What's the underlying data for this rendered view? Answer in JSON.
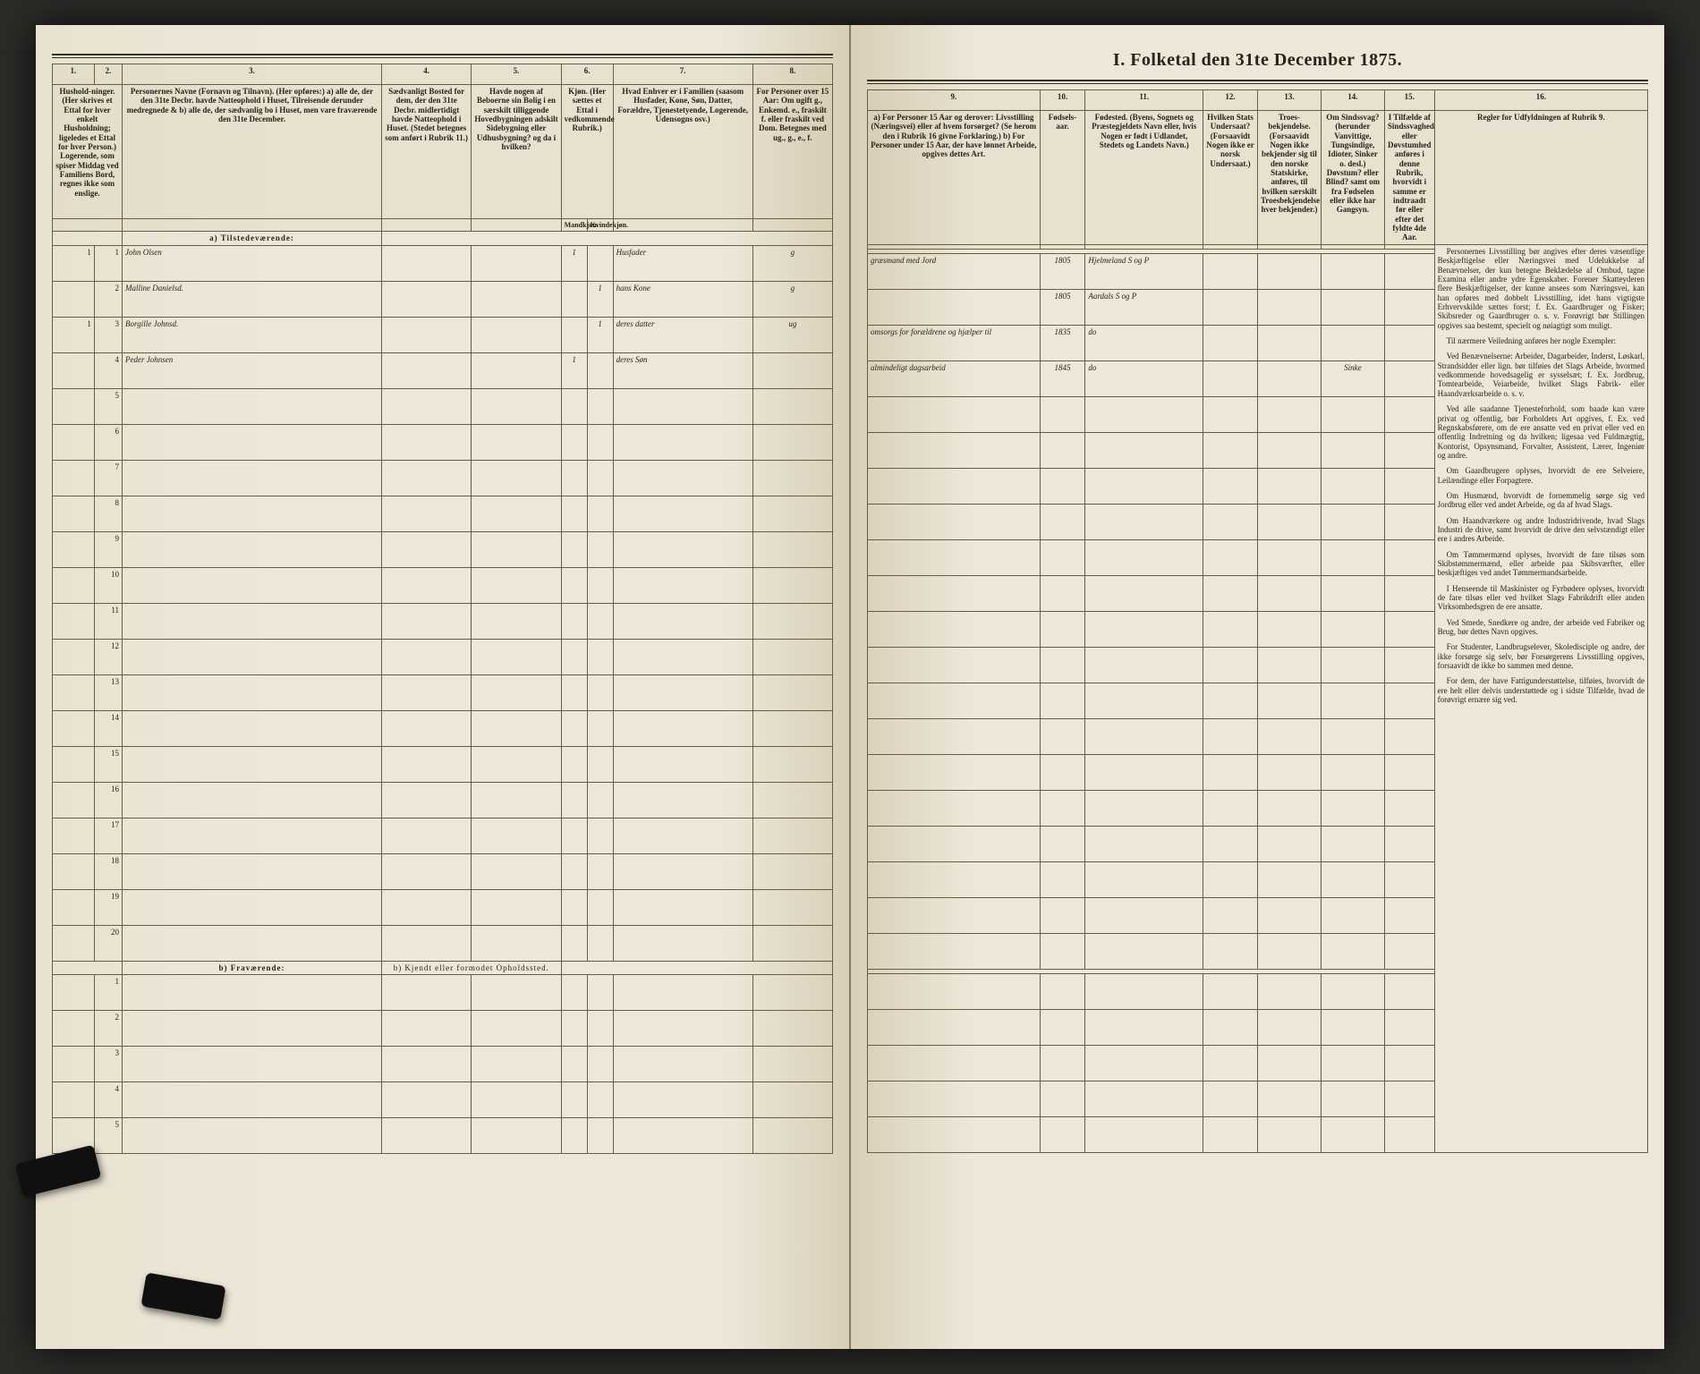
{
  "title": "I. Folketal den 31te December 1875.",
  "columns_left": {
    "nums": [
      "1.",
      "2.",
      "3.",
      "4.",
      "5.",
      "6.",
      "7.",
      "8."
    ],
    "h1": "Hushold-ninger.\n(Her skrives et Ettal for hver enkelt Husholdning; ligeledes et Ettal for hver Person.)\nLogerende, som spiser Middag ved Familiens Bord, regnes ikke som enslige.",
    "h2": "",
    "h3": "Personernes Navne (Fornavn og Tilnavn).\n(Her opføres:)\na) alle de, der den 31te Decbr. havde Natteophold i Huset, Tilreisende derunder medregnede &\nb) alle de, der sædvanlig bo i Huset, men vare fraværende den 31te December.",
    "h4": "Sædvanligt Bosted for dem, der den 31te Decbr. midlertidigt havde Natteophold i Huset.\n(Stedet betegnes som anført i Rubrik 11.)",
    "h5": "Havde nogen af Beboerne sin Bolig i en særskilt tilliggende Hovedbygningen adskilt Sidebygning eller Udhusbygning? og da i hvilken?",
    "h6": "Kjøn.\n(Her sættes et Ettal i vedkommende Rubrik.)",
    "h6a": "Mandkjøn.",
    "h6b": "Kvindekjøn.",
    "h7": "Hvad Enhver er i Familien\n(saasom Husfader, Kone, Søn, Datter, Forældre, Tjenestetyende, Logerende, Udensogns osv.)",
    "h8": "For Personer over 15 Aar: Om ugift g., Enkemd. e., fraskilt f. eller fraskilt ved Dom. Betegnes med ug., g., e., f."
  },
  "columns_right": {
    "nums": [
      "9.",
      "10.",
      "11.",
      "12.",
      "13.",
      "14.",
      "15.",
      "16."
    ],
    "h9": "a) For Personer 15 Aar og derover: Livsstilling (Næringsvei) eller af hvem forsørget? (Se herom den i Rubrik 16 givne Forklaring.)\nb) For Personer under 15 Aar, der have lønnet Arbeide, opgives dettes Art.",
    "h10": "Fødsels-aar.",
    "h11": "Fødested.\n(Byens, Sognets og Præstegjeldets Navn eller, hvis Nogen er født i Udlandet, Stedets og Landets Navn.)",
    "h12": "Hvilken Stats Undersaat?\n(Forsaavidt Nogen ikke er norsk Undersaat.)",
    "h13": "Troes-bekjendelse.\n(Forsaavidt Nogen ikke bekjender sig til den norske Statskirke, anføres, til hvilken særskilt Troesbekjendelse hver bekjender.)",
    "h14": "Om Sindssvag? (herunder Vanvittige, Tungsindige, Idioter, Sinker o. desl.) Døvstum? eller Blind? samt om fra Fødselen eller ikke har Gangsyn.",
    "h15": "I Tilfælde af Sindssvaghed eller Døvstumhed anføres i denne Rubrik, hvorvidt i samme er indtraadt før eller efter det fyldte 4de Aar.",
    "h16": "Regler for Udfyldningen\naf\nRubrik 9."
  },
  "sections": {
    "a": "a) Tilstedeværende:",
    "b": "b) Fraværende:",
    "b_note": "b) Kjendt eller formodet Opholdssted."
  },
  "rows": [
    {
      "n": "1",
      "p": "1",
      "name": "John Olsen",
      "sex": "1",
      "fam": "Husfader",
      "civ": "g",
      "occ": "græsmand med Jord",
      "year": "1805",
      "place": "Hjelmeland S og P"
    },
    {
      "n": "",
      "p": "2",
      "name": "Malline Danielsd.",
      "sex": "",
      "fam": "hans Kone",
      "civ": "g",
      "occ": "",
      "year": "1805",
      "place": "Aardals S og P"
    },
    {
      "n": "1",
      "p": "3",
      "name": "Borgille Johnsd.",
      "sex": "",
      "fam": "deres datter",
      "civ": "ug",
      "occ": "omsorgs for forældrene og hjælper til",
      "year": "1835",
      "place": "do"
    },
    {
      "n": "",
      "p": "4",
      "name": "Peder Johnsen",
      "sex": "1",
      "fam": "deres Søn",
      "civ": "",
      "occ": "almindeligt dagsarbeid",
      "year": "1845",
      "place": "do"
    }
  ],
  "empty_rows_a": [
    "5",
    "6",
    "7",
    "8",
    "9",
    "10",
    "11",
    "12",
    "13",
    "14",
    "15",
    "16",
    "17",
    "18",
    "19",
    "20"
  ],
  "empty_rows_b": [
    "1",
    "2",
    "3",
    "4",
    "5"
  ],
  "rules_text": [
    "Personernes Livsstilling bør angives efter deres væsentlige Beskjæftigelse eller Næringsvei med Udelukkelse af Benævnelser, der kun betegne Beklædelse af Ombud, tagne Examina eller andre ydre Egenskaber. Forener Skatteyderen flere Beskjæftigelser, der kunne ansees som Næringsvei, kan han opføres med dobbelt Livsstilling, idet hans vigtigste Erhvervskilde sættes forst; f. Ex. Gaardbruger og Fisker; Skibsreder og Gaardbruger o. s. v. Forøvrigt bør Stillingen opgives saa bestemt, specielt og nøiagtigt som muligt.",
    "Til nærmere Veiledning anføres her nogle Exempler:",
    "Ved Benævnelserne: Arbeider, Dagarbeider, Inderst, Løskarl, Strandsidder eller lign. bør tilføies det Slags Arbeide, hvormed vedkommende hovedsagelig er sysselsæt; f. Ex. Jordbrug, Tomtearbeide, Veiarbeide, hvilket Slags Fabrik- eller Haandværksarbeide o. s. v.",
    "Ved alle saadanne Tjenesteforhold, som baade kan være privat og offentlig, bør Forholdets Art opgives, f. Ex. ved Regnskabsførere, om de ere ansatte ved en privat eller ved en offentlig Indretning og da hvilken; ligesaa ved Fuldmægtig, Kontorist, Opsynsmand, Forvalter, Assistent, Lærer, Ingeniør og andre.",
    "Om Gaardbrugere oplyses, hvorvidt de ere Selveiere, Leilændinge eller Forpagtere.",
    "Om Husmænd, hvorvidt de fornemmelig sørge sig ved Jordbrug eller ved andet Arbeide, og da af hvad Slags.",
    "Om Haandværkere og andre Industridrivende, hvad Slags Industri de drive, samt hvorvidt de drive den selvstændigt eller ere i andres Arbeide.",
    "Om Tømmermænd oplyses, hvorvidt de fare tilsøs som Skibstømmermænd, eller arbeide paa Skibsværfter, eller beskjæftiges ved andet Tømmermandsarbeide.",
    "I Henseende til Maskinister og Fyrbødere oplyses, hvorvidt de fare tilsøs eller ved hvilket Slags Fabrikdrift eller anden Virksomhedsgren de ere ansatte.",
    "Ved Smede, Snedkere og andre, der arbeide ved Fabriker og Brug, bør dettes Navn opgives.",
    "For Studenter, Landbrugselever, Skoledisciple og andre, der ikke forsørge sig selv, bør Forsørgerens Livsstilling opgives, forsaavidt de ikke bo sammen med denne.",
    "For dem, der have Fattigunderstøttelse, tilføies, hvorvidt de ere helt eller delvis understøttede og i sidste Tilfælde, hvad de forøvrigt ernære sig ved."
  ],
  "colors": {
    "paper": "#ece7d8",
    "ink": "#2a2418",
    "rule": "#6b5d3f",
    "hand": "#3d3a2f"
  }
}
